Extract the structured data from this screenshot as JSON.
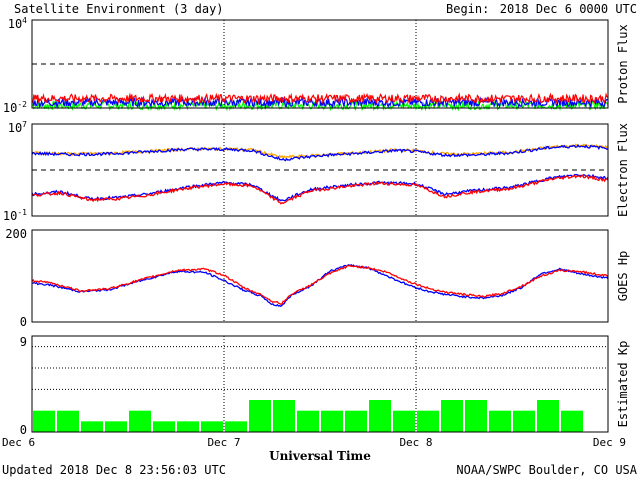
{
  "header": {
    "title": "Satellite Environment (3 day)",
    "begin_label": "Begin:",
    "begin_value": "2018 Dec 6 0000 UTC"
  },
  "footer": {
    "updated": "Updated 2018 Dec  8 23:56:03 UTC",
    "credit": "NOAA/SWPC Boulder, CO USA"
  },
  "x_axis": {
    "label": "Universal Time",
    "ticks": [
      "Dec 6",
      "Dec 7",
      "Dec 8",
      "Dec 9"
    ],
    "range_days": [
      0,
      3
    ]
  },
  "colors": {
    "red": "#ff0000",
    "blue": "#0000ff",
    "green": "#00ff00",
    "orange": "#ffa500",
    "kp_bar": "#00ff00"
  },
  "chart_data": [
    {
      "type": "line",
      "ylabel": "Proton Flux",
      "scale": "log",
      "y_ticks": [
        {
          "base": "10",
          "exp": "4"
        },
        {
          "base": "10",
          "exp": "-2"
        }
      ],
      "ylim_log10": [
        -2,
        4
      ],
      "threshold_log10": 1,
      "series": [
        {
          "color": "red",
          "level_log10": -1.35
        },
        {
          "color": "blue",
          "level_log10": -1.62
        },
        {
          "color": "green",
          "level_log10": -1.82
        }
      ]
    },
    {
      "type": "line",
      "ylabel": "Electron Flux",
      "scale": "log",
      "y_ticks": [
        {
          "base": "10",
          "exp": "7"
        },
        {
          "base": "10",
          "exp": "-1"
        }
      ],
      "ylim_log10": [
        -1,
        7
      ],
      "threshold_log10": 3,
      "series": [
        {
          "color": "orange",
          "x": [
            0,
            0.2,
            0.4,
            0.6,
            0.8,
            1.0,
            1.15,
            1.3,
            1.5,
            1.7,
            1.9,
            2.0,
            2.15,
            2.3,
            2.5,
            2.7,
            2.85,
            3.0
          ],
          "y_log10": [
            4.5,
            4.4,
            4.45,
            4.62,
            4.82,
            4.85,
            4.75,
            4.1,
            4.3,
            4.5,
            4.75,
            4.68,
            4.4,
            4.4,
            4.55,
            5.0,
            5.15,
            5.0
          ]
        },
        {
          "color": "blue",
          "x": [
            0,
            0.2,
            0.4,
            0.6,
            0.8,
            1.0,
            1.15,
            1.3,
            1.5,
            1.7,
            1.9,
            2.0,
            2.15,
            2.3,
            2.5,
            2.7,
            2.85,
            3.0
          ],
          "y_log10": [
            4.45,
            4.35,
            4.4,
            4.6,
            4.8,
            4.8,
            4.7,
            3.9,
            4.25,
            4.45,
            4.7,
            4.6,
            4.3,
            4.3,
            4.5,
            4.95,
            5.1,
            4.9
          ]
        },
        {
          "color": "blue",
          "x": [
            0,
            0.15,
            0.3,
            0.45,
            0.6,
            0.8,
            1.0,
            1.15,
            1.3,
            1.45,
            1.6,
            1.8,
            2.0,
            2.15,
            2.3,
            2.5,
            2.7,
            2.85,
            3.0
          ],
          "y_log10": [
            0.9,
            1.1,
            0.5,
            0.6,
            0.9,
            1.5,
            1.9,
            1.7,
            0.3,
            1.3,
            1.6,
            1.9,
            1.8,
            0.9,
            1.2,
            1.5,
            2.3,
            2.6,
            2.3
          ]
        },
        {
          "color": "red",
          "x": [
            0,
            0.15,
            0.3,
            0.45,
            0.6,
            0.8,
            1.0,
            1.15,
            1.3,
            1.45,
            1.6,
            1.8,
            2.0,
            2.15,
            2.3,
            2.5,
            2.7,
            2.85,
            3.0
          ],
          "y_log10": [
            0.8,
            1.0,
            0.4,
            0.5,
            0.8,
            1.4,
            1.8,
            1.6,
            0.1,
            1.2,
            1.5,
            1.85,
            1.7,
            0.7,
            1.1,
            1.4,
            2.2,
            2.5,
            2.1
          ]
        }
      ]
    },
    {
      "type": "line",
      "ylabel": "GOES Hp",
      "scale": "linear",
      "y_ticks": [
        "200",
        "0"
      ],
      "ylim": [
        0,
        200
      ],
      "series": [
        {
          "color": "red",
          "x": [
            0,
            0.1,
            0.25,
            0.4,
            0.55,
            0.75,
            0.9,
            1.0,
            1.1,
            1.2,
            1.25,
            1.3,
            1.35,
            1.45,
            1.55,
            1.65,
            1.75,
            1.85,
            1.95,
            2.05,
            2.15,
            2.25,
            2.35,
            2.45,
            2.55,
            2.65,
            2.75,
            2.85,
            3.0
          ],
          "y": [
            90,
            85,
            68,
            72,
            90,
            112,
            115,
            102,
            75,
            58,
            45,
            40,
            60,
            80,
            105,
            122,
            118,
            108,
            90,
            75,
            65,
            60,
            55,
            62,
            78,
            100,
            112,
            110,
            100
          ]
        },
        {
          "color": "blue",
          "x": [
            0,
            0.1,
            0.25,
            0.4,
            0.55,
            0.75,
            0.9,
            1.0,
            1.1,
            1.2,
            1.25,
            1.3,
            1.35,
            1.45,
            1.55,
            1.65,
            1.75,
            1.85,
            1.95,
            2.05,
            2.15,
            2.25,
            2.35,
            2.45,
            2.55,
            2.65,
            2.75,
            2.85,
            3.0
          ],
          "y": [
            85,
            80,
            66,
            70,
            88,
            110,
            108,
            90,
            70,
            55,
            38,
            35,
            58,
            78,
            110,
            124,
            118,
            100,
            82,
            68,
            60,
            55,
            52,
            58,
            75,
            105,
            115,
            105,
            95
          ]
        }
      ]
    },
    {
      "type": "bar",
      "ylabel": "Estimated Kp",
      "y_ticks": [
        "9",
        "0"
      ],
      "ylim": [
        0,
        9
      ],
      "dotted_levels": [
        4,
        6,
        8,
        9
      ],
      "values": [
        2,
        2,
        1,
        1,
        2,
        1,
        1,
        1,
        1,
        3,
        3,
        2,
        2,
        2,
        3,
        2,
        2,
        3,
        3,
        2,
        2,
        3,
        2,
        0
      ]
    }
  ]
}
